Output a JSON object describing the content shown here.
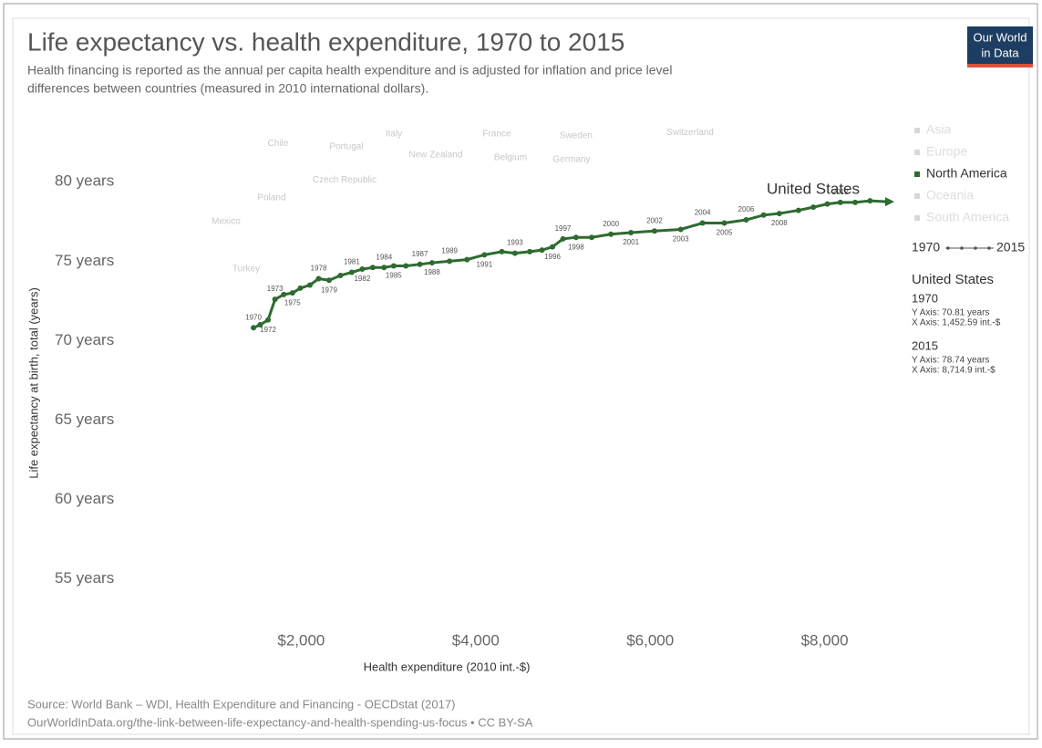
{
  "chart_data": {
    "type": "line",
    "title": "Life expectancy vs. health expenditure, 1970 to 2015",
    "subtitle": [
      "Health financing is reported as the annual per capita health expenditure and is adjusted for inflation and price level",
      "differences between countries (measured in 2010 international dollars)."
    ],
    "logo": [
      "Our World",
      "in Data"
    ],
    "xlabel": "Health expenditure (2010 int.-$)",
    "ylabel": "Life expectancy at birth, total (years)",
    "xlim": [
      115,
      8788
    ],
    "ylim": [
      52.4,
      83.4
    ],
    "xticks": [
      {
        "value": 2000,
        "label": "$2,000"
      },
      {
        "value": 4000,
        "label": "$4,000"
      },
      {
        "value": 6000,
        "label": "$6,000"
      },
      {
        "value": 8000,
        "label": "$8,000"
      }
    ],
    "yticks": [
      {
        "value": 55,
        "label": "55 years"
      },
      {
        "value": 60,
        "label": "60 years"
      },
      {
        "value": 65,
        "label": "65 years"
      },
      {
        "value": 70,
        "label": "70 years"
      },
      {
        "value": 75,
        "label": "75 years"
      },
      {
        "value": 80,
        "label": "80 years"
      }
    ],
    "grid": false,
    "series": [
      {
        "name": "United States",
        "color": "#2e6b30",
        "x": [
          1453,
          1530,
          1620,
          1700,
          1800,
          1900,
          1990,
          2100,
          2200,
          2320,
          2450,
          2580,
          2700,
          2820,
          2950,
          3060,
          3200,
          3360,
          3500,
          3700,
          3900,
          4100,
          4300,
          4450,
          4620,
          4760,
          4880,
          5000,
          5150,
          5330,
          5550,
          5780,
          6050,
          6350,
          6600,
          6850,
          7100,
          7300,
          7480,
          7700,
          7870,
          8030,
          8180,
          8350,
          8520,
          8715
        ],
        "values": [
          70.81,
          71.0,
          71.3,
          72.6,
          72.9,
          73.0,
          73.3,
          73.5,
          73.9,
          73.8,
          74.1,
          74.3,
          74.5,
          74.6,
          74.6,
          74.7,
          74.7,
          74.8,
          74.9,
          75.0,
          75.1,
          75.4,
          75.6,
          75.5,
          75.6,
          75.7,
          75.9,
          76.4,
          76.5,
          76.5,
          76.7,
          76.8,
          76.9,
          77.0,
          77.4,
          77.4,
          77.6,
          77.9,
          78.0,
          78.2,
          78.4,
          78.6,
          78.7,
          78.7,
          78.8,
          78.74
        ],
        "point_labels": [
          "1970",
          null,
          "1972",
          "1973",
          null,
          "1975",
          null,
          null,
          "1978",
          "1979",
          null,
          "1981",
          "1982",
          null,
          "1984",
          "1985",
          null,
          "1987",
          "1988",
          "1989",
          null,
          "1991",
          null,
          "1993",
          null,
          null,
          "1996",
          "1997",
          "1998",
          null,
          "2000",
          "2001",
          "2002",
          "2003",
          "2004",
          "2005",
          "2006",
          null,
          "2008",
          null,
          null,
          null,
          "2012",
          null,
          null,
          null
        ]
      }
    ],
    "background_labels": [
      {
        "text": "Chile",
        "x": 1735,
        "y": 82.4
      },
      {
        "text": "Portugal",
        "x": 2518,
        "y": 82.2
      },
      {
        "text": "Italy",
        "x": 3062,
        "y": 83.0
      },
      {
        "text": "France",
        "x": 4242,
        "y": 83.0
      },
      {
        "text": "Sweden",
        "x": 5150,
        "y": 82.9
      },
      {
        "text": "Switzerland",
        "x": 6458,
        "y": 83.1
      },
      {
        "text": "New Zealand",
        "x": 3542,
        "y": 81.7
      },
      {
        "text": "Belgium",
        "x": 4399,
        "y": 81.5
      },
      {
        "text": "Germany",
        "x": 5099,
        "y": 81.4
      },
      {
        "text": "Czech Republic",
        "x": 2497,
        "y": 80.1
      },
      {
        "text": "Poland",
        "x": 1661,
        "y": 79.0
      },
      {
        "text": "Mexico",
        "x": 1139,
        "y": 77.5
      },
      {
        "text": "Turkey",
        "x": 1369,
        "y": 74.5
      }
    ],
    "legend": [
      {
        "name": "Asia",
        "color": "#d8d8d8"
      },
      {
        "name": "Europe",
        "color": "#d8d8d8"
      },
      {
        "name": "North America",
        "color": "#2e6b30"
      },
      {
        "name": "Oceania",
        "color": "#d8d8d8"
      },
      {
        "name": "South America",
        "color": "#d8d8d8"
      }
    ],
    "timeline": [
      "1970",
      "2015"
    ],
    "info": {
      "country": "United States",
      "entries": [
        {
          "year": "1970",
          "y_text": "Y Axis: 70.81 years",
          "x_text": "X Axis: 1,452.59 int.-$"
        },
        {
          "year": "2015",
          "y_text": "Y Axis: 78.74 years",
          "x_text": "X Axis: 8,714.9 int.-$"
        }
      ]
    },
    "source": [
      "Source: World Bank – WDI, Health Expenditure and Financing - OECDstat (2017)",
      "OurWorldInData.org/the-link-between-life-expectancy-and-health-spending-us-focus • CC BY-SA"
    ]
  }
}
